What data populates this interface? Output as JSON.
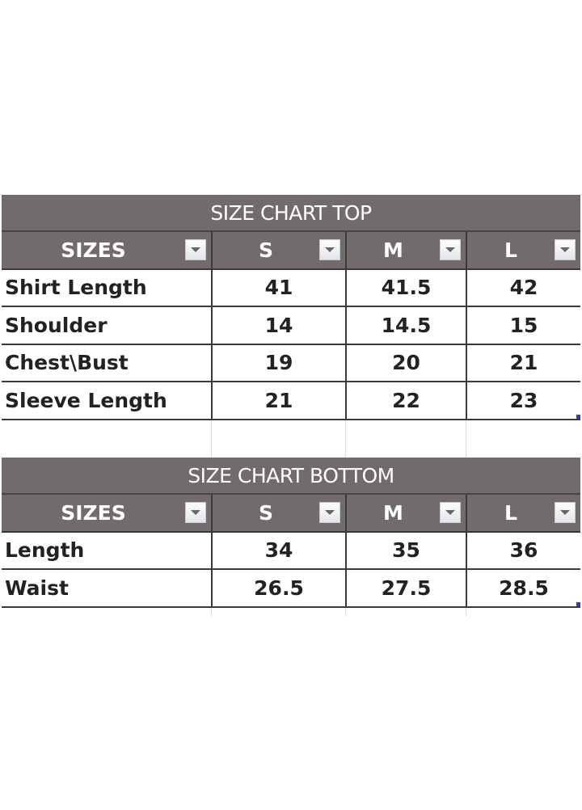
{
  "top": {
    "title": "SIZE CHART TOP",
    "headers": [
      "SIZES",
      "S",
      "M",
      "L"
    ],
    "rows": [
      [
        "Shirt Length",
        "41",
        "41.5",
        "42"
      ],
      [
        "Shoulder",
        "14",
        "14.5",
        "15"
      ],
      [
        "Chest\\Bust",
        "19",
        "20",
        "21"
      ],
      [
        "Sleeve Length",
        "21",
        "22",
        "23"
      ]
    ]
  },
  "bottom": {
    "title": "SIZE CHART BOTTOM",
    "headers": [
      "SIZES",
      "S",
      "M",
      "L"
    ],
    "rows": [
      [
        "Length",
        "34",
        "35",
        "36"
      ],
      [
        "Waist",
        "26.5",
        "27.5",
        "28.5"
      ]
    ]
  },
  "colors": {
    "header_bg": "#716b6b",
    "text": "#222222",
    "header_text": "#ffffff"
  }
}
